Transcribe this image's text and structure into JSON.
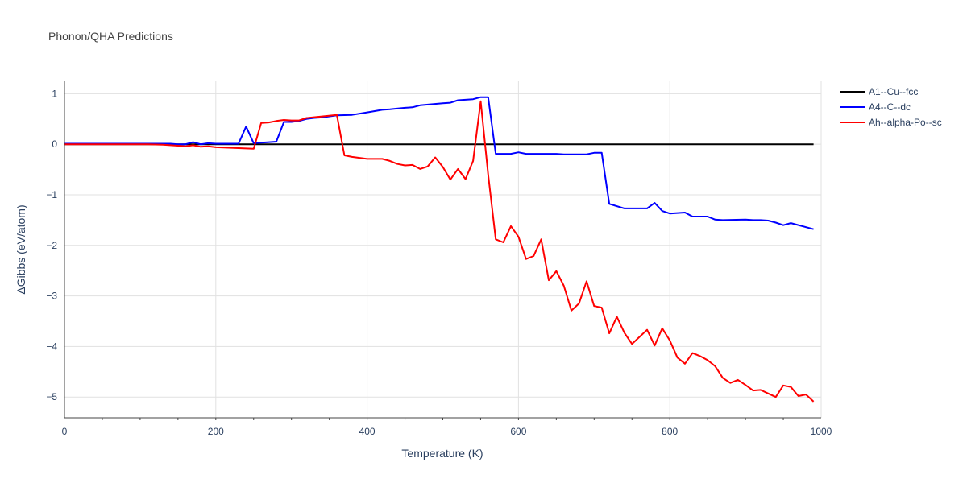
{
  "chart_data": {
    "type": "line",
    "title": "Phonon/QHA Predictions",
    "xlabel": "Temperature (K)",
    "ylabel": "ΔGibbs (eV/atom)",
    "xlim": [
      0,
      1000
    ],
    "ylim": [
      -5.41,
      1.26
    ],
    "xticks": [
      0,
      200,
      400,
      600,
      800,
      1000
    ],
    "yticks": [
      1,
      0,
      -1,
      -2,
      -3,
      -4,
      -5
    ],
    "grid": true,
    "legend_position": "top-right",
    "series": [
      {
        "name": "A1--Cu--fcc",
        "color": "#000000",
        "x": [
          0,
          990
        ],
        "y": [
          0,
          0
        ]
      },
      {
        "name": "A4--C--dc",
        "color": "#0000ff",
        "x": [
          0,
          130,
          140,
          150,
          160,
          170,
          180,
          190,
          200,
          220,
          230,
          240,
          250,
          260,
          280,
          290,
          300,
          310,
          320,
          330,
          340,
          360,
          380,
          400,
          420,
          430,
          450,
          460,
          470,
          500,
          510,
          520,
          540,
          550,
          560,
          570,
          590,
          600,
          610,
          640,
          650,
          660,
          690,
          700,
          710,
          720,
          740,
          770,
          780,
          790,
          800,
          820,
          830,
          850,
          860,
          870,
          900,
          910,
          920,
          930,
          940,
          950,
          960,
          990
        ],
        "y": [
          0.01,
          0.01,
          0.01,
          0,
          0,
          0.04,
          0,
          0.02,
          0.01,
          0.01,
          0.01,
          0.35,
          0.02,
          0.03,
          0.05,
          0.44,
          0.44,
          0.46,
          0.5,
          0.52,
          0.53,
          0.57,
          0.58,
          0.63,
          0.68,
          0.69,
          0.72,
          0.73,
          0.77,
          0.81,
          0.82,
          0.87,
          0.89,
          0.93,
          0.93,
          -0.19,
          -0.19,
          -0.16,
          -0.19,
          -0.19,
          -0.19,
          -0.2,
          -0.2,
          -0.17,
          -0.17,
          -1.18,
          -1.27,
          -1.27,
          -1.16,
          -1.32,
          -1.37,
          -1.35,
          -1.43,
          -1.43,
          -1.49,
          -1.5,
          -1.49,
          -1.5,
          -1.5,
          -1.51,
          -1.55,
          -1.6,
          -1.56,
          -1.68
        ]
      },
      {
        "name": "Ah--alpha-Po--sc",
        "color": "#ff0000",
        "x": [
          0,
          110,
          130,
          150,
          160,
          170,
          180,
          190,
          200,
          250,
          260,
          270,
          280,
          290,
          300,
          310,
          320,
          360,
          370,
          380,
          400,
          420,
          430,
          440,
          450,
          460,
          470,
          480,
          490,
          500,
          510,
          520,
          530,
          540,
          550,
          560,
          570,
          580,
          590,
          600,
          610,
          620,
          630,
          640,
          650,
          660,
          670,
          680,
          690,
          700,
          710,
          720,
          730,
          740,
          750,
          760,
          770,
          780,
          790,
          800,
          810,
          820,
          830,
          840,
          850,
          860,
          870,
          880,
          890,
          900,
          910,
          920,
          930,
          940,
          950,
          960,
          970,
          980,
          990
        ],
        "y": [
          0,
          0,
          -0.01,
          -0.03,
          -0.04,
          -0.02,
          -0.05,
          -0.04,
          -0.06,
          -0.09,
          0.42,
          0.43,
          0.46,
          0.48,
          0.47,
          0.47,
          0.52,
          0.58,
          -0.22,
          -0.25,
          -0.29,
          -0.29,
          -0.33,
          -0.39,
          -0.42,
          -0.41,
          -0.49,
          -0.44,
          -0.26,
          -0.45,
          -0.7,
          -0.49,
          -0.69,
          -0.33,
          0.85,
          -0.6,
          -1.88,
          -1.94,
          -1.62,
          -1.83,
          -2.27,
          -2.21,
          -1.88,
          -2.69,
          -2.51,
          -2.8,
          -3.29,
          -3.15,
          -2.71,
          -3.2,
          -3.23,
          -3.74,
          -3.41,
          -3.73,
          -3.95,
          -3.81,
          -3.67,
          -3.98,
          -3.64,
          -3.88,
          -4.22,
          -4.34,
          -4.13,
          -4.19,
          -4.27,
          -4.39,
          -4.62,
          -4.72,
          -4.66,
          -4.76,
          -4.87,
          -4.86,
          -4.93,
          -5.0,
          -4.77,
          -4.8,
          -4.98,
          -4.95,
          -5.09
        ]
      }
    ]
  }
}
